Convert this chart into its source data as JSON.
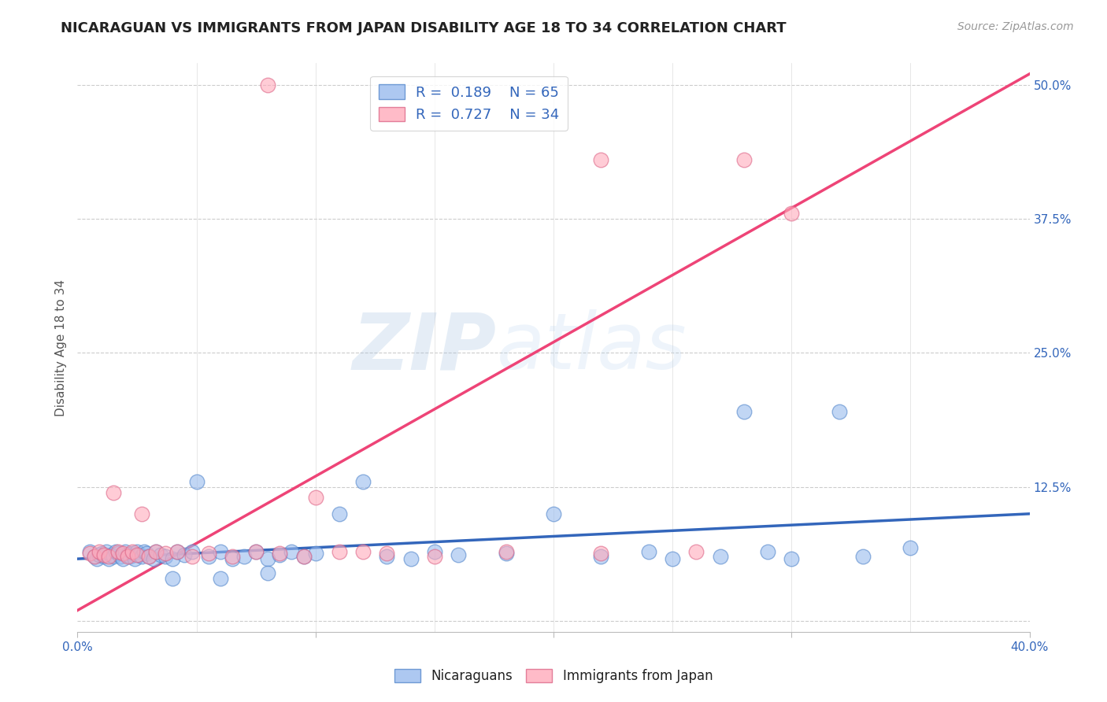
{
  "title": "NICARAGUAN VS IMMIGRANTS FROM JAPAN DISABILITY AGE 18 TO 34 CORRELATION CHART",
  "source": "Source: ZipAtlas.com",
  "ylabel": "Disability Age 18 to 34",
  "xlim": [
    0.0,
    0.4
  ],
  "ylim": [
    -0.01,
    0.52
  ],
  "xticks": [
    0.0,
    0.1,
    0.2,
    0.3,
    0.4
  ],
  "xticklabels": [
    "0.0%",
    "",
    "",
    "",
    "40.0%"
  ],
  "yticks": [
    0.0,
    0.125,
    0.25,
    0.375,
    0.5
  ],
  "yticklabels_right": [
    "",
    "12.5%",
    "25.0%",
    "37.5%",
    "50.0%"
  ],
  "watermark_zip": "ZIP",
  "watermark_atlas": "atlas",
  "legend_r1": "0.189",
  "legend_n1": "65",
  "legend_r2": "0.727",
  "legend_n2": "34",
  "blue_color": "#99BBEE",
  "blue_edge_color": "#5588CC",
  "blue_line_color": "#3366BB",
  "pink_color": "#FFAABB",
  "pink_edge_color": "#DD6688",
  "pink_line_color": "#EE4477",
  "blue_scatter_x": [
    0.005,
    0.007,
    0.008,
    0.009,
    0.01,
    0.011,
    0.012,
    0.013,
    0.014,
    0.015,
    0.016,
    0.017,
    0.018,
    0.019,
    0.02,
    0.021,
    0.022,
    0.023,
    0.024,
    0.025,
    0.026,
    0.027,
    0.028,
    0.029,
    0.03,
    0.032,
    0.033,
    0.035,
    0.037,
    0.04,
    0.042,
    0.045,
    0.048,
    0.05,
    0.055,
    0.06,
    0.065,
    0.07,
    0.075,
    0.08,
    0.085,
    0.09,
    0.095,
    0.1,
    0.11,
    0.12,
    0.13,
    0.14,
    0.15,
    0.16,
    0.18,
    0.2,
    0.22,
    0.24,
    0.25,
    0.27,
    0.29,
    0.3,
    0.32,
    0.35,
    0.04,
    0.06,
    0.08,
    0.28,
    0.33
  ],
  "blue_scatter_y": [
    0.065,
    0.06,
    0.058,
    0.062,
    0.063,
    0.06,
    0.065,
    0.058,
    0.062,
    0.06,
    0.065,
    0.063,
    0.06,
    0.058,
    0.065,
    0.062,
    0.06,
    0.063,
    0.058,
    0.065,
    0.062,
    0.06,
    0.065,
    0.063,
    0.06,
    0.058,
    0.065,
    0.062,
    0.06,
    0.058,
    0.065,
    0.062,
    0.065,
    0.13,
    0.06,
    0.065,
    0.058,
    0.06,
    0.065,
    0.058,
    0.062,
    0.065,
    0.06,
    0.063,
    0.1,
    0.13,
    0.06,
    0.058,
    0.065,
    0.062,
    0.063,
    0.1,
    0.06,
    0.065,
    0.058,
    0.06,
    0.065,
    0.058,
    0.195,
    0.068,
    0.04,
    0.04,
    0.045,
    0.195,
    0.06
  ],
  "pink_scatter_x": [
    0.005,
    0.007,
    0.009,
    0.011,
    0.013,
    0.015,
    0.017,
    0.019,
    0.021,
    0.023,
    0.025,
    0.027,
    0.03,
    0.033,
    0.037,
    0.042,
    0.048,
    0.055,
    0.065,
    0.075,
    0.085,
    0.095,
    0.11,
    0.13,
    0.15,
    0.18,
    0.22,
    0.26,
    0.08,
    0.1,
    0.12,
    0.22,
    0.28,
    0.3
  ],
  "pink_scatter_y": [
    0.063,
    0.06,
    0.065,
    0.062,
    0.06,
    0.12,
    0.065,
    0.063,
    0.06,
    0.065,
    0.062,
    0.1,
    0.06,
    0.065,
    0.063,
    0.065,
    0.06,
    0.063,
    0.06,
    0.065,
    0.063,
    0.06,
    0.065,
    0.063,
    0.06,
    0.065,
    0.063,
    0.065,
    0.5,
    0.115,
    0.065,
    0.43,
    0.43,
    0.38
  ],
  "blue_trend_x": [
    0.0,
    0.4
  ],
  "blue_trend_y": [
    0.058,
    0.1
  ],
  "pink_trend_x": [
    0.0,
    0.4
  ],
  "pink_trend_y": [
    0.01,
    0.51
  ],
  "background_color": "#ffffff",
  "grid_color": "#cccccc",
  "title_fontsize": 13,
  "axis_label_fontsize": 11,
  "tick_fontsize": 11,
  "legend_fontsize": 13
}
